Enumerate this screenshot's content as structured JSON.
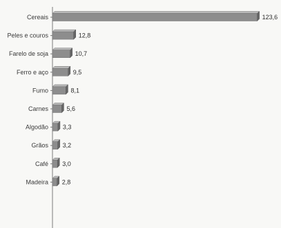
{
  "chart_data": {
    "type": "bar",
    "orientation": "horizontal",
    "categories": [
      "Cereais",
      "Peles e couros",
      "Farelo de soja",
      "Ferro e aço",
      "Fumo",
      "Carnes",
      "Algodão",
      "Grãos",
      "Café",
      "Madeira"
    ],
    "values": [
      123.6,
      12.8,
      10.7,
      9.5,
      8.1,
      5.6,
      3.3,
      3.2,
      3.0,
      2.8
    ],
    "value_labels": [
      "123,6",
      "12,8",
      "10,7",
      "9,5",
      "8,1",
      "5,6",
      "3,3",
      "3,2",
      "3,0",
      "2,8"
    ],
    "xlim": [
      0,
      125
    ],
    "grid": false,
    "legend": "none",
    "colors": {
      "bar": "#8d8d8d",
      "bar_top": "#b8b8b8",
      "bar_side": "#666666",
      "axis": "#7a7a7a",
      "text": "#353535",
      "background": "#f8f8f6"
    }
  }
}
